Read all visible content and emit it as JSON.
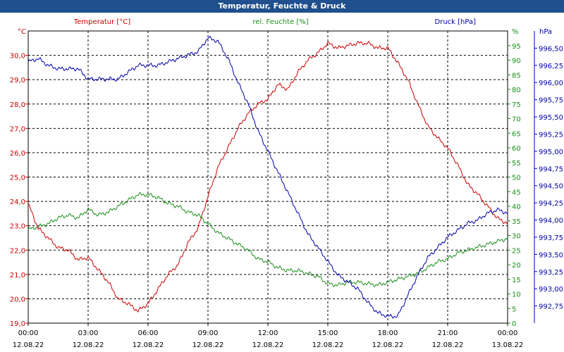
{
  "window": {
    "title": "Temperatur, Feuchte & Druck"
  },
  "colors": {
    "temperature": "#cc0000",
    "humidity": "#1a8f1a",
    "pressure": "#0000aa",
    "grid": "#000000",
    "titlebar": "#1f4f8c"
  },
  "chart_data": {
    "type": "line",
    "grid": true,
    "x_ticks": [
      {
        "time": "00:00",
        "date": "12.08.22"
      },
      {
        "time": "03:00",
        "date": "12.08.22"
      },
      {
        "time": "06:00",
        "date": "12.08.22"
      },
      {
        "time": "09:00",
        "date": "12.08.22"
      },
      {
        "time": "12:00",
        "date": "12.08.22"
      },
      {
        "time": "15:00",
        "date": "12.08.22"
      },
      {
        "time": "18:00",
        "date": "12.08.22"
      },
      {
        "time": "21:00",
        "date": "12.08.22"
      },
      {
        "time": "00:00",
        "date": "13.08.22"
      }
    ],
    "x_range_hours": [
      0,
      24
    ],
    "axes": {
      "temperature": {
        "label": "Temperatur [°C]",
        "unit": "°C",
        "range": [
          19.0,
          31.0
        ],
        "ticks": [
          "19,0",
          "20,0",
          "21,0",
          "22,0",
          "23,0",
          "24,0",
          "25,0",
          "26,0",
          "27,0",
          "28,0",
          "29,0",
          "30,0"
        ]
      },
      "humidity": {
        "label": "rel. Feuchte [%]",
        "unit": "%",
        "range": [
          0,
          100
        ],
        "ticks": [
          "0",
          "5",
          "10",
          "15",
          "20",
          "25",
          "30",
          "35",
          "40",
          "45",
          "50",
          "55",
          "60",
          "65",
          "70",
          "75",
          "80",
          "85",
          "90",
          "95"
        ]
      },
      "pressure": {
        "label": "Druck [hPa]",
        "unit": "hPa",
        "range": [
          992.5,
          996.75
        ],
        "ticks": [
          "992,75",
          "993,00",
          "993,25",
          "993,50",
          "993,75",
          "994,00",
          "994,25",
          "994,50",
          "994,75",
          "995,00",
          "995,25",
          "995,50",
          "995,75",
          "996,00",
          "996,25",
          "996,50"
        ]
      }
    },
    "series": [
      {
        "name": "Temperatur [°C]",
        "axis": "temperature",
        "x": [
          0,
          0.5,
          1,
          1.5,
          2,
          2.5,
          3,
          3.5,
          4,
          4.5,
          5,
          5.5,
          6,
          6.5,
          7,
          7.5,
          8,
          8.5,
          9,
          9.5,
          10,
          10.5,
          11,
          11.5,
          12,
          12.5,
          13,
          13.5,
          14,
          14.5,
          15,
          15.5,
          16,
          16.5,
          17,
          17.5,
          18,
          18.5,
          19,
          19.5,
          20,
          20.5,
          21,
          21.5,
          22,
          22.5,
          23,
          23.5,
          24
        ],
        "values": [
          23.9,
          22.9,
          22.5,
          22.1,
          22.0,
          21.6,
          21.7,
          21.2,
          20.7,
          20.0,
          19.8,
          19.5,
          19.8,
          20.4,
          21.0,
          21.4,
          22.3,
          22.9,
          24.2,
          25.4,
          26.2,
          27.0,
          27.6,
          28.0,
          28.2,
          28.8,
          28.6,
          29.3,
          29.8,
          30.1,
          30.5,
          30.3,
          30.4,
          30.5,
          30.5,
          30.3,
          30.3,
          29.7,
          29.0,
          28.0,
          27.1,
          26.6,
          26.2,
          25.5,
          24.7,
          24.3,
          23.8,
          23.3,
          23.1
        ]
      },
      {
        "name": "rel. Feuchte [%]",
        "axis": "humidity",
        "x": [
          0,
          0.5,
          1,
          1.5,
          2,
          2.5,
          3,
          3.5,
          4,
          4.5,
          5,
          5.5,
          6,
          6.5,
          7,
          7.5,
          8,
          8.5,
          9,
          9.5,
          10,
          10.5,
          11,
          11.5,
          12,
          12.5,
          13,
          13.5,
          14,
          14.5,
          15,
          15.5,
          16,
          16.5,
          17,
          17.5,
          18,
          18.5,
          19,
          19.5,
          20,
          20.5,
          21,
          21.5,
          22,
          22.5,
          23,
          23.5,
          24
        ],
        "values": [
          32,
          33,
          34,
          36,
          37,
          36,
          39,
          37,
          38,
          40,
          42,
          44,
          44,
          43,
          41,
          40,
          38,
          37,
          34,
          31,
          29,
          27,
          25,
          22,
          21,
          19,
          18,
          18,
          17,
          16,
          13.5,
          13,
          14,
          14,
          13.5,
          13,
          14,
          15,
          16,
          17,
          19,
          21,
          22,
          24,
          25,
          26,
          27,
          28,
          29
        ]
      },
      {
        "name": "Druck [hPa]",
        "axis": "pressure",
        "x": [
          0,
          0.5,
          1,
          1.5,
          2,
          2.5,
          3,
          3.5,
          4,
          4.5,
          5,
          5.5,
          6,
          6.5,
          7,
          7.5,
          8,
          8.5,
          9,
          9.5,
          10,
          10.5,
          11,
          11.5,
          12,
          12.5,
          13,
          13.5,
          14,
          14.5,
          15,
          15.5,
          16,
          16.5,
          17,
          17.5,
          18,
          18.5,
          19,
          19.5,
          20,
          20.5,
          21,
          21.5,
          22,
          22.5,
          23,
          23.5,
          24
        ],
        "values": [
          996.3,
          996.35,
          996.25,
          996.2,
          996.2,
          996.2,
          996.05,
          996.05,
          996.05,
          996.05,
          996.15,
          996.25,
          996.25,
          996.25,
          996.3,
          996.35,
          996.4,
          996.45,
          996.65,
          996.6,
          996.35,
          996.0,
          995.7,
          995.3,
          995.0,
          994.7,
          994.4,
          994.1,
          993.8,
          993.6,
          993.4,
          993.2,
          993.1,
          993.0,
          992.8,
          992.65,
          992.6,
          992.6,
          992.9,
          993.2,
          993.45,
          993.6,
          993.75,
          993.85,
          993.95,
          994.0,
          994.1,
          994.15,
          994.1
        ]
      }
    ]
  }
}
